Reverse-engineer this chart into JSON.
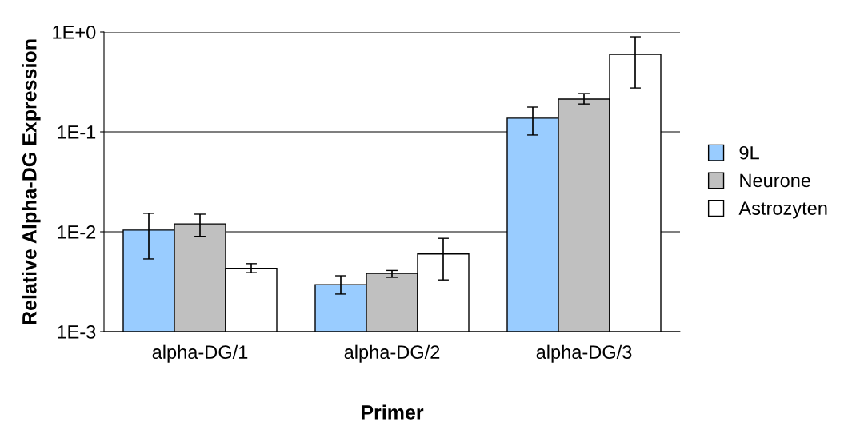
{
  "chart_data": {
    "type": "bar",
    "xlabel": "Primer",
    "ylabel": "Relative Alpha-DG Expression",
    "categories": [
      "alpha-DG/1",
      "alpha-DG/2",
      "alpha-DG/3"
    ],
    "series": [
      {
        "name": "9L",
        "color": "#99ccff",
        "values": [
          0.0104,
          0.00296,
          0.137
        ],
        "errors": [
          [
            0.00535,
            0.0153
          ],
          [
            0.00238,
            0.00363
          ],
          [
            0.093,
            0.177
          ]
        ]
      },
      {
        "name": "Neurone",
        "color": "#c0c0c0",
        "values": [
          0.012,
          0.00384,
          0.213
        ],
        "errors": [
          [
            0.009,
            0.015
          ],
          [
            0.0035,
            0.0041
          ],
          [
            0.19,
            0.242
          ]
        ]
      },
      {
        "name": "Astrozyten",
        "color": "#ffffff",
        "values": [
          0.0043,
          0.006,
          0.597
        ],
        "errors": [
          [
            0.0039,
            0.0048
          ],
          [
            0.0033,
            0.0086
          ],
          [
            0.275,
            0.895
          ]
        ]
      }
    ],
    "log": "y",
    "ylim": [
      0.001,
      1
    ],
    "yticks": [
      {
        "value": 0.001,
        "label": "1E-3"
      },
      {
        "value": 0.01,
        "label": "1E-2"
      },
      {
        "value": 0.1,
        "label": "1E-1"
      },
      {
        "value": 1,
        "label": "1E+0"
      }
    ],
    "grid": "y",
    "legend": "right"
  }
}
